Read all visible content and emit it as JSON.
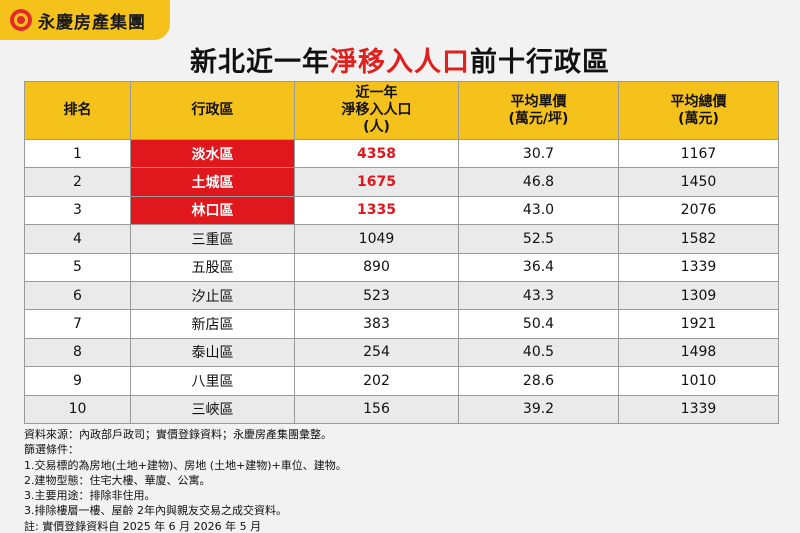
{
  "brand": {
    "name": "永慶房產集團",
    "icon": "yungching-logo-icon"
  },
  "title": {
    "prefix": "新北近一年",
    "highlight": "淨移入人口",
    "suffix": "前十行政區"
  },
  "colors": {
    "accent_yellow": "#f5c21b",
    "highlight_red": "#e0171c"
  },
  "table": {
    "headers": {
      "rank": "排名",
      "district": "行政區",
      "net_in_l1": "近一年",
      "net_in_l2": "淨移入人口",
      "net_in_l3": "(人)",
      "unit_l1": "平均單價",
      "unit_l2": "(萬元/坪)",
      "total_l1": "平均總價",
      "total_l2": "(萬元)"
    },
    "rows": [
      {
        "rank": "1",
        "district": "淡水區",
        "net_in": "4358",
        "unit_price": "30.7",
        "total_price": "1167"
      },
      {
        "rank": "2",
        "district": "土城區",
        "net_in": "1675",
        "unit_price": "46.8",
        "total_price": "1450"
      },
      {
        "rank": "3",
        "district": "林口區",
        "net_in": "1335",
        "unit_price": "43.0",
        "total_price": "2076"
      },
      {
        "rank": "4",
        "district": "三重區",
        "net_in": "1049",
        "unit_price": "52.5",
        "total_price": "1582"
      },
      {
        "rank": "5",
        "district": "五股區",
        "net_in": "890",
        "unit_price": "36.4",
        "total_price": "1339"
      },
      {
        "rank": "6",
        "district": "汐止區",
        "net_in": "523",
        "unit_price": "43.3",
        "total_price": "1309"
      },
      {
        "rank": "7",
        "district": "新店區",
        "net_in": "383",
        "unit_price": "50.4",
        "total_price": "1921"
      },
      {
        "rank": "8",
        "district": "泰山區",
        "net_in": "254",
        "unit_price": "40.5",
        "total_price": "1498"
      },
      {
        "rank": "9",
        "district": "八里區",
        "net_in": "202",
        "unit_price": "28.6",
        "total_price": "1010"
      },
      {
        "rank": "10",
        "district": "三峽區",
        "net_in": "156",
        "unit_price": "39.2",
        "total_price": "1339"
      }
    ]
  },
  "notes": {
    "source": "資料來源：內政部戶政司；實價登錄資料；永慶房產集團彙整。",
    "filter_title": "篩選條件：",
    "item1": "1.交易標的為房地(土地+建物)、房地 (土地+建物)+車位、建物。",
    "item2": "2.建物型態：住宅大樓、華廈、公寓。",
    "item3": "3.主要用途：排除非住用。",
    "item4": "3.排除樓層一樓、屋齡 2年內與親友交易之成交資料。",
    "footnote": "註: 實價登錄資料自 2025 年 6 月 2026 年 5 月"
  }
}
